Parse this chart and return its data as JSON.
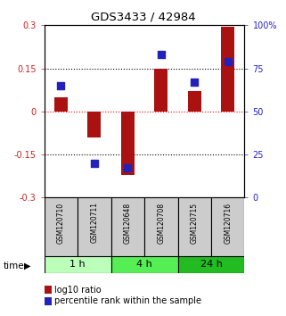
{
  "title": "GDS3433 / 42984",
  "samples": [
    "GSM120710",
    "GSM120711",
    "GSM120648",
    "GSM120708",
    "GSM120715",
    "GSM120716"
  ],
  "groups": [
    {
      "label": "1 h",
      "indices": [
        0,
        1
      ]
    },
    {
      "label": "4 h",
      "indices": [
        2,
        3
      ]
    },
    {
      "label": "24 h",
      "indices": [
        4,
        5
      ]
    }
  ],
  "group_colors": [
    "#bbffbb",
    "#55ee55",
    "#22bb22"
  ],
  "log10_ratio": [
    0.05,
    -0.09,
    -0.22,
    0.15,
    0.07,
    0.295
  ],
  "percentile_rank_pct": [
    65,
    20,
    17,
    83,
    67,
    79
  ],
  "ylim_left": [
    -0.3,
    0.3
  ],
  "ylim_right": [
    0,
    100
  ],
  "yticks_left": [
    -0.3,
    -0.15,
    0,
    0.15,
    0.3
  ],
  "ytick_labels_left": [
    "-0.3",
    "-0.15",
    "0",
    "0.15",
    "0.3"
  ],
  "yticks_right": [
    0,
    25,
    50,
    75,
    100
  ],
  "ytick_labels_right": [
    "0",
    "25",
    "50",
    "75",
    "100%"
  ],
  "hlines_dotted": [
    -0.15,
    0.15
  ],
  "hline_zero": 0,
  "bar_color": "#aa1111",
  "dot_color": "#2222bb",
  "bar_width": 0.4,
  "dot_size": 30,
  "left_tick_color": "#cc2222",
  "right_tick_color": "#2222cc",
  "sample_box_color": "#cccccc",
  "bg_color": "#ffffff"
}
